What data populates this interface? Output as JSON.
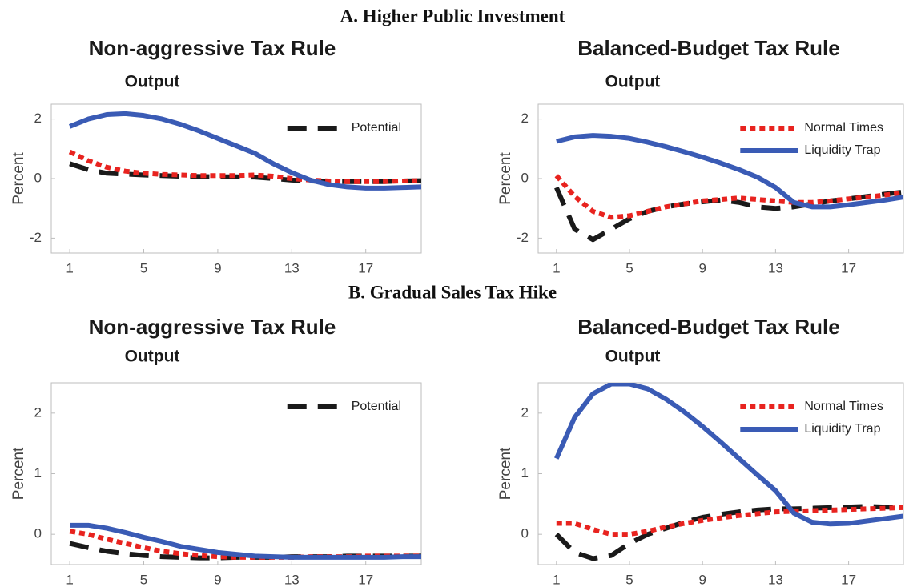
{
  "section_titles": [
    "A.   Higher Public Investment",
    "B.   Gradual Sales Tax Hike"
  ],
  "chart_data": [
    {
      "type": "line",
      "title": "Non-aggressive Tax Rule",
      "subtitle": "Output",
      "ylabel": "Percent",
      "x": [
        1,
        2,
        3,
        4,
        5,
        6,
        7,
        8,
        9,
        10,
        11,
        12,
        13,
        14,
        15,
        16,
        17,
        18,
        19,
        20
      ],
      "xlim": [
        0,
        20
      ],
      "xticks": [
        1,
        5,
        9,
        13,
        17
      ],
      "ylim": [
        -2.5,
        2.5
      ],
      "yticks": [
        -2,
        0,
        2
      ],
      "grid": false,
      "legend": "upper right",
      "series": [
        {
          "name": "Potential",
          "color": "#1a1a1a",
          "dash": "dashed",
          "values": [
            0.5,
            0.3,
            0.18,
            0.15,
            0.12,
            0.1,
            0.08,
            0.07,
            0.06,
            0.06,
            0.05,
            0.0,
            -0.05,
            -0.08,
            -0.1,
            -0.1,
            -0.1,
            -0.1,
            -0.08,
            -0.07
          ]
        },
        {
          "color": "#e8231f",
          "dash": "dotted",
          "values": [
            0.9,
            0.6,
            0.38,
            0.25,
            0.18,
            0.14,
            0.12,
            0.1,
            0.1,
            0.1,
            0.12,
            0.08,
            0.0,
            -0.05,
            -0.08,
            -0.1,
            -0.1,
            -0.1,
            -0.08,
            -0.07
          ]
        },
        {
          "color": "#3a5bb5",
          "dash": "solid",
          "values": [
            1.75,
            2.0,
            2.15,
            2.18,
            2.12,
            2.0,
            1.82,
            1.6,
            1.35,
            1.1,
            0.85,
            0.5,
            0.2,
            -0.05,
            -0.2,
            -0.28,
            -0.32,
            -0.32,
            -0.3,
            -0.28
          ]
        }
      ]
    },
    {
      "type": "line",
      "title": "Balanced-Budget Tax Rule",
      "subtitle": "Output",
      "ylabel": "Percent",
      "x": [
        1,
        2,
        3,
        4,
        5,
        6,
        7,
        8,
        9,
        10,
        11,
        12,
        13,
        14,
        15,
        16,
        17,
        18,
        19,
        20
      ],
      "xlim": [
        0,
        20
      ],
      "xticks": [
        1,
        5,
        9,
        13,
        17
      ],
      "ylim": [
        -2.5,
        2.5
      ],
      "yticks": [
        -2,
        0,
        2
      ],
      "grid": false,
      "legend": "upper right",
      "series": [
        {
          "color": "#1a1a1a",
          "dash": "dashed",
          "values": [
            -0.3,
            -1.7,
            -2.05,
            -1.7,
            -1.35,
            -1.1,
            -0.95,
            -0.85,
            -0.78,
            -0.72,
            -0.8,
            -0.95,
            -1.0,
            -0.95,
            -0.85,
            -0.75,
            -0.68,
            -0.6,
            -0.52,
            -0.45
          ]
        },
        {
          "name": "Normal Times",
          "color": "#e8231f",
          "dash": "dotted",
          "values": [
            0.1,
            -0.6,
            -1.1,
            -1.3,
            -1.25,
            -1.1,
            -0.95,
            -0.85,
            -0.75,
            -0.7,
            -0.65,
            -0.7,
            -0.75,
            -0.8,
            -0.8,
            -0.75,
            -0.68,
            -0.62,
            -0.55,
            -0.48
          ]
        },
        {
          "name": "Liquidity Trap",
          "color": "#3a5bb5",
          "dash": "solid",
          "values": [
            1.25,
            1.4,
            1.45,
            1.42,
            1.35,
            1.22,
            1.07,
            0.9,
            0.72,
            0.52,
            0.3,
            0.05,
            -0.3,
            -0.8,
            -0.95,
            -0.95,
            -0.88,
            -0.8,
            -0.72,
            -0.62
          ]
        }
      ]
    },
    {
      "type": "line",
      "title": "Non-aggressive Tax Rule",
      "subtitle": "Output",
      "ylabel": "Percent",
      "x": [
        1,
        2,
        3,
        4,
        5,
        6,
        7,
        8,
        9,
        10,
        11,
        12,
        13,
        14,
        15,
        16,
        17,
        18,
        19,
        20
      ],
      "xlim": [
        0,
        20
      ],
      "xticks": [
        1,
        5,
        9,
        13,
        17
      ],
      "ylim": [
        -0.5,
        2.5
      ],
      "yticks": [
        0,
        1,
        2
      ],
      "grid": false,
      "legend": "upper right",
      "series": [
        {
          "name": "Potential",
          "color": "#1a1a1a",
          "dash": "dashed",
          "values": [
            -0.15,
            -0.22,
            -0.28,
            -0.32,
            -0.35,
            -0.37,
            -0.38,
            -0.39,
            -0.39,
            -0.38,
            -0.38,
            -0.38,
            -0.37,
            -0.37,
            -0.37,
            -0.36,
            -0.36,
            -0.36,
            -0.36,
            -0.36
          ]
        },
        {
          "color": "#e8231f",
          "dash": "dotted",
          "values": [
            0.05,
            0.0,
            -0.08,
            -0.15,
            -0.22,
            -0.28,
            -0.32,
            -0.35,
            -0.37,
            -0.38,
            -0.38,
            -0.38,
            -0.38,
            -0.37,
            -0.37,
            -0.37,
            -0.36,
            -0.36,
            -0.36,
            -0.36
          ]
        },
        {
          "color": "#3a5bb5",
          "dash": "solid",
          "values": [
            0.15,
            0.15,
            0.1,
            0.03,
            -0.05,
            -0.12,
            -0.2,
            -0.25,
            -0.3,
            -0.33,
            -0.36,
            -0.37,
            -0.38,
            -0.38,
            -0.38,
            -0.38,
            -0.38,
            -0.38,
            -0.37,
            -0.37
          ]
        }
      ]
    },
    {
      "type": "line",
      "title": "Balanced-Budget Tax Rule",
      "subtitle": "Output",
      "ylabel": "Percent",
      "x": [
        1,
        2,
        3,
        4,
        5,
        6,
        7,
        8,
        9,
        10,
        11,
        12,
        13,
        14,
        15,
        16,
        17,
        18,
        19,
        20
      ],
      "xlim": [
        0,
        20
      ],
      "xticks": [
        1,
        5,
        9,
        13,
        17
      ],
      "ylim": [
        -0.5,
        2.5
      ],
      "yticks": [
        0,
        1,
        2
      ],
      "grid": false,
      "legend": "upper right",
      "series": [
        {
          "color": "#1a1a1a",
          "dash": "dashed",
          "values": [
            0.0,
            -0.3,
            -0.4,
            -0.35,
            -0.15,
            0.0,
            0.1,
            0.2,
            0.28,
            0.33,
            0.37,
            0.4,
            0.42,
            0.42,
            0.43,
            0.44,
            0.45,
            0.46,
            0.45,
            0.44
          ]
        },
        {
          "name": "Normal Times",
          "color": "#e8231f",
          "dash": "dotted",
          "values": [
            0.18,
            0.18,
            0.08,
            0.0,
            0.0,
            0.05,
            0.12,
            0.18,
            0.23,
            0.27,
            0.31,
            0.34,
            0.37,
            0.38,
            0.39,
            0.4,
            0.41,
            0.42,
            0.43,
            0.44
          ]
        },
        {
          "name": "Liquidity Trap",
          "color": "#3a5bb5",
          "dash": "solid",
          "values": [
            1.25,
            1.93,
            2.32,
            2.48,
            2.48,
            2.4,
            2.23,
            2.02,
            1.78,
            1.52,
            1.25,
            0.98,
            0.72,
            0.35,
            0.2,
            0.17,
            0.18,
            0.22,
            0.26,
            0.3
          ]
        }
      ]
    }
  ]
}
